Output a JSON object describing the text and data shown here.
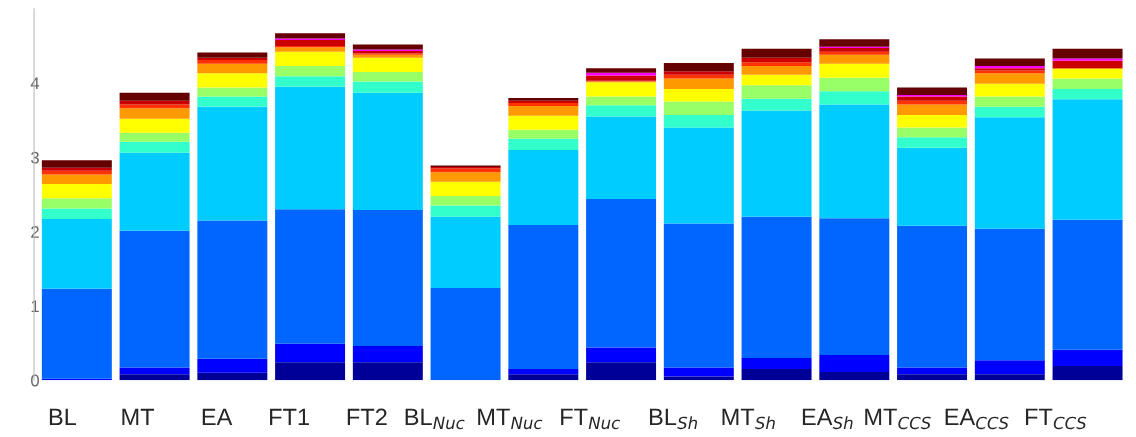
{
  "chart_data": {
    "type": "bar",
    "stacked": true,
    "categories": [
      "BL",
      "MT",
      "EA",
      "FT1",
      "FT2",
      "BL$_{Nuc}$",
      "MT$_{Nuc}$",
      "FT$_{Nuc}$",
      "BL$_{Sh}$",
      "MT$_{Sh}$",
      "EA$_{Sh}$",
      "MT$_{CCS}$",
      "EA$_{CCS}$",
      "FT$_{CCS}$"
    ],
    "series": [
      {
        "color": "#000099",
        "values": [
          0,
          0.08,
          0.1,
          0.24,
          0.24,
          0,
          0.08,
          0.24,
          0.05,
          0.15,
          0.11,
          0.08,
          0.08,
          0.19
        ]
      },
      {
        "color": "#0000ff",
        "values": [
          0.02,
          0.09,
          0.19,
          0.25,
          0.22,
          0,
          0.07,
          0.2,
          0.12,
          0.15,
          0.23,
          0.09,
          0.19,
          0.22
        ]
      },
      {
        "color": "#0066ff",
        "values": [
          1.21,
          1.84,
          1.86,
          1.81,
          1.83,
          1.24,
          1.94,
          2.0,
          1.94,
          1.9,
          1.84,
          1.91,
          1.77,
          1.75
        ]
      },
      {
        "color": "#00ccff",
        "values": [
          0.94,
          1.05,
          1.53,
          1.65,
          1.58,
          0.96,
          1.01,
          1.11,
          1.29,
          1.43,
          1.53,
          1.05,
          1.5,
          1.62
        ]
      },
      {
        "color": "#33ffcc",
        "values": [
          0.14,
          0.15,
          0.14,
          0.14,
          0.15,
          0.15,
          0.15,
          0.15,
          0.17,
          0.16,
          0.18,
          0.14,
          0.14,
          0.14
        ]
      },
      {
        "color": "#99ff66",
        "values": [
          0.14,
          0.12,
          0.12,
          0.14,
          0.13,
          0.13,
          0.12,
          0.12,
          0.18,
          0.18,
          0.18,
          0.13,
          0.14,
          0.14
        ]
      },
      {
        "color": "#ffff00",
        "values": [
          0.19,
          0.19,
          0.19,
          0.19,
          0.19,
          0.19,
          0.19,
          0.19,
          0.17,
          0.14,
          0.19,
          0.17,
          0.17,
          0.13
        ]
      },
      {
        "color": "#ff9900",
        "values": [
          0.13,
          0.14,
          0.13,
          0.06,
          0.04,
          0.13,
          0.13,
          0.01,
          0.14,
          0.12,
          0.12,
          0.14,
          0.14,
          0.01
        ]
      },
      {
        "color": "#ff3300",
        "values": [
          0.05,
          0.05,
          0.05,
          0.02,
          0.02,
          0.05,
          0.04,
          0.01,
          0.05,
          0.05,
          0.04,
          0.05,
          0.04,
          0
        ]
      },
      {
        "color": "#cc0000",
        "values": [
          0.04,
          0.05,
          0.03,
          0.08,
          0.03,
          0.02,
          0.03,
          0.07,
          0.05,
          0.06,
          0.05,
          0.06,
          0.03,
          0.1
        ]
      },
      {
        "color": "#ff00ff",
        "values": [
          0,
          0,
          0,
          0.02,
          0.02,
          0,
          0,
          0.04,
          0,
          0,
          0.02,
          0.02,
          0.03,
          0.03
        ]
      },
      {
        "color": "#660000",
        "values": [
          0.1,
          0.11,
          0.07,
          0.07,
          0.07,
          0.02,
          0.04,
          0.06,
          0.11,
          0.12,
          0.1,
          0.1,
          0.1,
          0.13
        ]
      }
    ],
    "ylim": [
      0,
      5
    ],
    "yticks": [
      0,
      1,
      2,
      3,
      4
    ],
    "grid": false,
    "legend": false
  }
}
